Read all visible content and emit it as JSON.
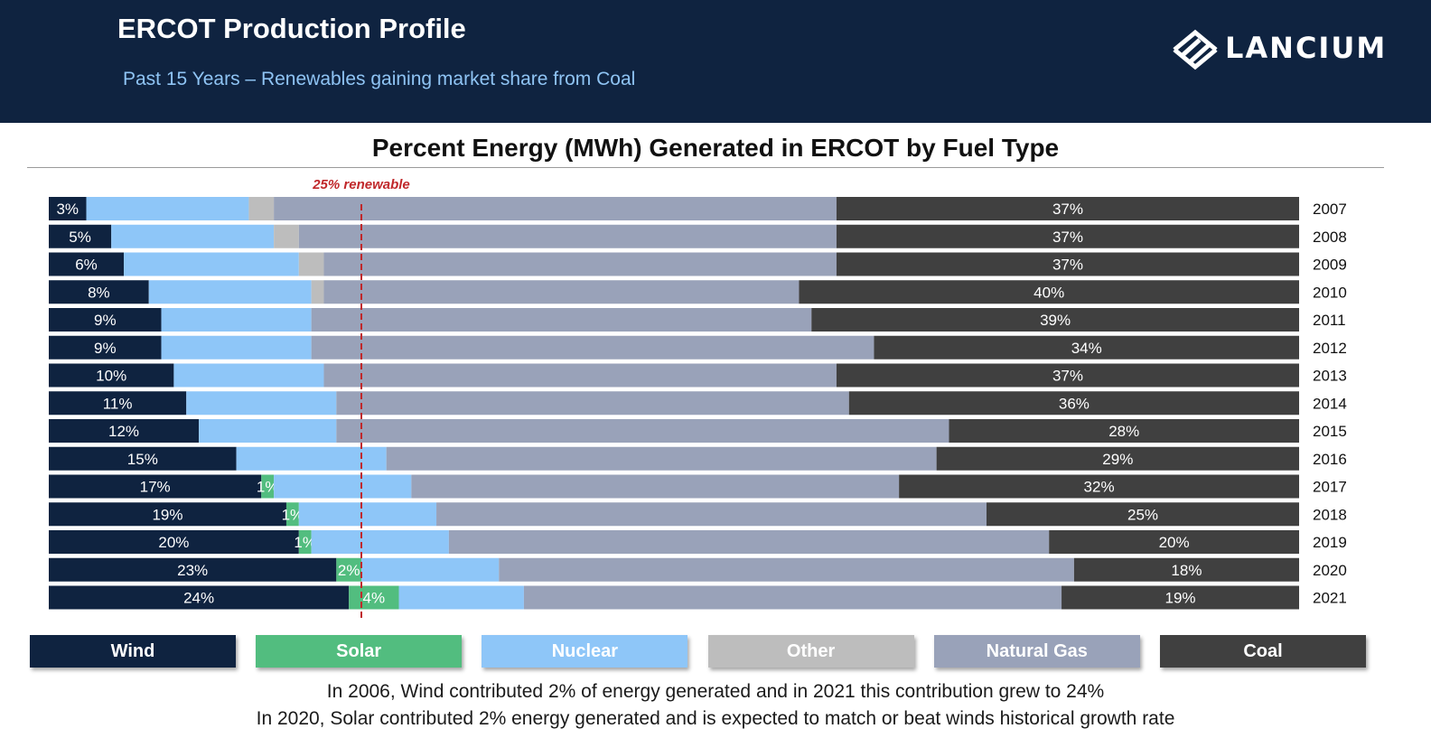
{
  "header": {
    "title": "ERCOT Production Profile",
    "subtitle": "Past 15 Years – Renewables gaining market share from Coal",
    "logo_text": "LANCIUM"
  },
  "chart_data": {
    "type": "bar",
    "orientation": "horizontal-stacked-100",
    "title": "Percent Energy (MWh) Generated in ERCOT by Fuel Type",
    "xlim": [
      0,
      100
    ],
    "categories": [
      "2007",
      "2008",
      "2009",
      "2010",
      "2011",
      "2012",
      "2013",
      "2014",
      "2015",
      "2016",
      "2017",
      "2018",
      "2019",
      "2020",
      "2021"
    ],
    "series": [
      {
        "name": "Wind",
        "color": "#0f2340",
        "label_color": "#ffffff",
        "values": [
          3,
          5,
          6,
          8,
          9,
          9,
          10,
          11,
          12,
          15,
          17,
          19,
          20,
          23,
          24
        ],
        "labels": [
          "3%",
          "5%",
          "6%",
          "8%",
          "9%",
          "9%",
          "10%",
          "11%",
          "12%",
          "15%",
          "17%",
          "19%",
          "20%",
          "23%",
          "24%"
        ]
      },
      {
        "name": "Solar",
        "color": "#52bd7f",
        "label_color": "#ffffff",
        "values": [
          0,
          0,
          0,
          0,
          0,
          0,
          0,
          0,
          0,
          0,
          1,
          1,
          1,
          2,
          4
        ],
        "labels": [
          "",
          "",
          "",
          "",
          "",
          "",
          "",
          "",
          "",
          "",
          "1%",
          "1%",
          "1%",
          "2%",
          "4%"
        ]
      },
      {
        "name": "Nuclear",
        "color": "#8ec6f8",
        "label_color": "#ffffff",
        "values": [
          13,
          13,
          14,
          13,
          12,
          12,
          12,
          12,
          11,
          12,
          11,
          11,
          11,
          11,
          10
        ],
        "labels": [
          "",
          "",
          "",
          "",
          "",
          "",
          "",
          "",
          "",
          "",
          "",
          "",
          "",
          "",
          ""
        ]
      },
      {
        "name": "Other",
        "color": "#bdbdbd",
        "label_color": "#ffffff",
        "values": [
          2,
          2,
          2,
          1,
          0,
          0,
          0,
          0,
          0,
          0,
          0,
          0,
          0,
          0,
          0
        ],
        "labels": [
          "",
          "",
          "",
          "",
          "",
          "",
          "",
          "",
          "",
          "",
          "",
          "",
          "",
          "",
          ""
        ]
      },
      {
        "name": "Natural Gas",
        "color": "#99a2b9",
        "label_color": "#ffffff",
        "values": [
          45,
          43,
          41,
          38,
          40,
          45,
          41,
          41,
          49,
          44,
          39,
          44,
          48,
          46,
          43
        ],
        "labels": [
          "",
          "",
          "",
          "",
          "",
          "",
          "",
          "",
          "",
          "",
          "",
          "",
          "",
          "",
          ""
        ]
      },
      {
        "name": "Coal",
        "color": "#404040",
        "label_color": "#ffffff",
        "values": [
          37,
          37,
          37,
          40,
          39,
          34,
          37,
          36,
          28,
          29,
          32,
          25,
          20,
          18,
          19
        ],
        "labels": [
          "37%",
          "37%",
          "37%",
          "40%",
          "39%",
          "34%",
          "37%",
          "36%",
          "28%",
          "29%",
          "32%",
          "25%",
          "20%",
          "18%",
          "19%"
        ]
      }
    ],
    "reference_line": {
      "x": 25,
      "label": "25% renewable",
      "color": "#c0282b"
    }
  },
  "footer": {
    "line1": "In 2006, Wind contributed 2% of energy generated and in 2021 this contribution grew to 24%",
    "line2": "In 2020, Solar contributed 2% energy generated and is expected to match or beat winds historical growth rate"
  }
}
